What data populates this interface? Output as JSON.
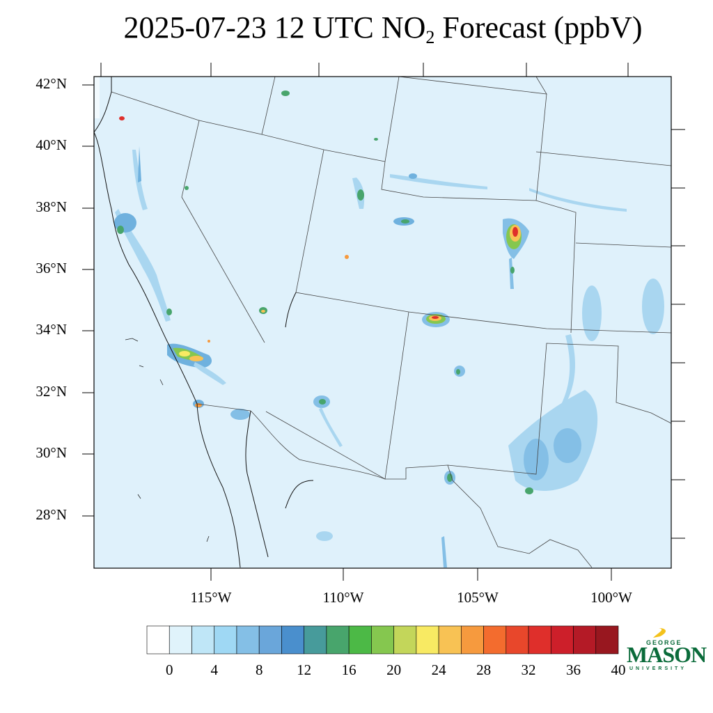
{
  "title": {
    "prefix": "2025-07-23 12 UTC NO",
    "subscript": "2",
    "suffix": " Forecast (ppbV)"
  },
  "lat_labels": [
    "42°N",
    "40°N",
    "38°N",
    "36°N",
    "34°N",
    "32°N",
    "30°N",
    "28°N"
  ],
  "lon_labels": [
    "115°W",
    "110°W",
    "105°W",
    "100°W"
  ],
  "colorbar": {
    "tick_labels": [
      "0",
      "4",
      "8",
      "12",
      "16",
      "20",
      "24",
      "28",
      "32",
      "36",
      "40"
    ],
    "colors": [
      "#ffffff",
      "#e0f3fb",
      "#bfe6f7",
      "#9fd8f4",
      "#84bfe6",
      "#6aa6da",
      "#4a8fcd",
      "#479b9b",
      "#48a56c",
      "#4cb946",
      "#85c74f",
      "#c3d65a",
      "#f8ea63",
      "#f8c254",
      "#f69a3e",
      "#f36c2e",
      "#e8472b",
      "#df2f2b",
      "#cd1f2a",
      "#b41a26",
      "#98171f"
    ]
  },
  "logo": {
    "line1": "GEORGE",
    "line2": "MASON",
    "line3": "UNIVERSITY"
  },
  "colors": {
    "background_field": "#dff1fb",
    "low_values": "#a9d6f0",
    "medium_values": "#6fb1de",
    "hotspot_green": "#4cb946",
    "hotspot_yellow": "#f8ea63",
    "hotspot_orange": "#f69a3e",
    "hotspot_red": "#df2f2b"
  }
}
